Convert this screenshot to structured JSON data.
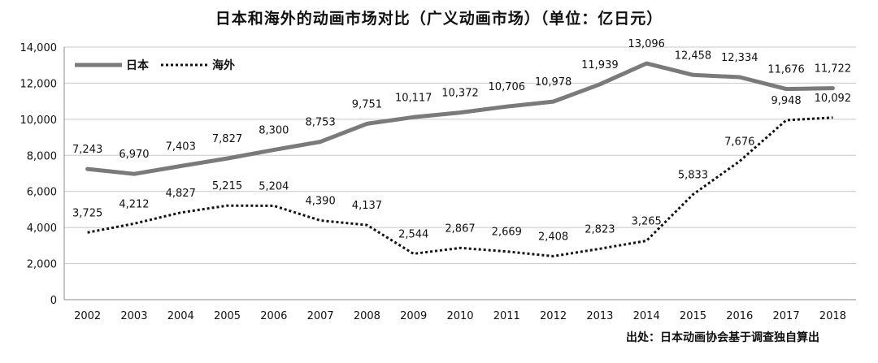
{
  "chart_data": {
    "type": "line",
    "title": "日本和海外的动画市场对比（广义动画市场）（单位：亿日元）",
    "xlabel": "",
    "ylabel": "",
    "categories": [
      "2002",
      "2003",
      "2004",
      "2005",
      "2006",
      "2007",
      "2008",
      "2009",
      "2010",
      "2011",
      "2012",
      "2013",
      "2014",
      "2015",
      "2016",
      "2017",
      "2018"
    ],
    "ylim": [
      0,
      14000
    ],
    "yticks": [
      0,
      2000,
      4000,
      6000,
      8000,
      10000,
      12000,
      14000
    ],
    "ytick_labels": [
      "0",
      "2,000",
      "4,000",
      "6,000",
      "8,000",
      "10,000",
      "12,000",
      "14,000"
    ],
    "grid": true,
    "legend_position": "top-left",
    "series": [
      {
        "name": "日本",
        "style": "solid",
        "color": "#7a7a7a",
        "values": [
          7243,
          6970,
          7403,
          7827,
          8300,
          8753,
          9751,
          10117,
          10372,
          10706,
          10978,
          11939,
          13096,
          12458,
          12334,
          11676,
          11722
        ],
        "labels": [
          "7,243",
          "6,970",
          "7,403",
          "7,827",
          "8,300",
          "8,753",
          "9,751",
          "10,117",
          "10,372",
          "10,706",
          "10,978",
          "11,939",
          "13,096",
          "12,458",
          "12,334",
          "11,676",
          "11,722"
        ]
      },
      {
        "name": "海外",
        "style": "dotted",
        "color": "#111111",
        "values": [
          3725,
          4212,
          4827,
          5215,
          5204,
          4390,
          4137,
          2544,
          2867,
          2669,
          2408,
          2823,
          3265,
          5833,
          7676,
          9948,
          10092
        ],
        "labels": [
          "3,725",
          "4,212",
          "4,827",
          "5,215",
          "5,204",
          "4,390",
          "4,137",
          "2,544",
          "2,867",
          "2,669",
          "2,408",
          "2,823",
          "3,265",
          "5,833",
          "7,676",
          "9,948",
          "10,092"
        ]
      }
    ]
  },
  "source_note": "出处：日本动画协会基于调查独自算出"
}
